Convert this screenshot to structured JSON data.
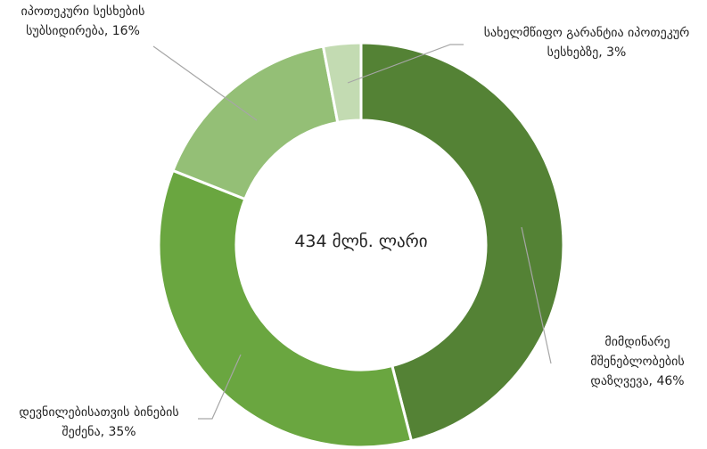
{
  "chart_data": {
    "type": "donut",
    "center_label": "434 მლნ. ლარი",
    "values": [
      46,
      35,
      16,
      3
    ],
    "value_labels": [
      "მიმდინარე მშენებლობების დაზღვევა, 46%",
      "დევნილებისათვის ბინების შეძენა, 35%",
      "იპოთეკური სესხების სუბსიდირება, 16%",
      "სახელმწიფო გარანტია იპოთეკურ სესხებზე, 3%"
    ],
    "colors": [
      "#548235",
      "#6aa640",
      "#94bf76",
      "#c3dbb2"
    ]
  }
}
